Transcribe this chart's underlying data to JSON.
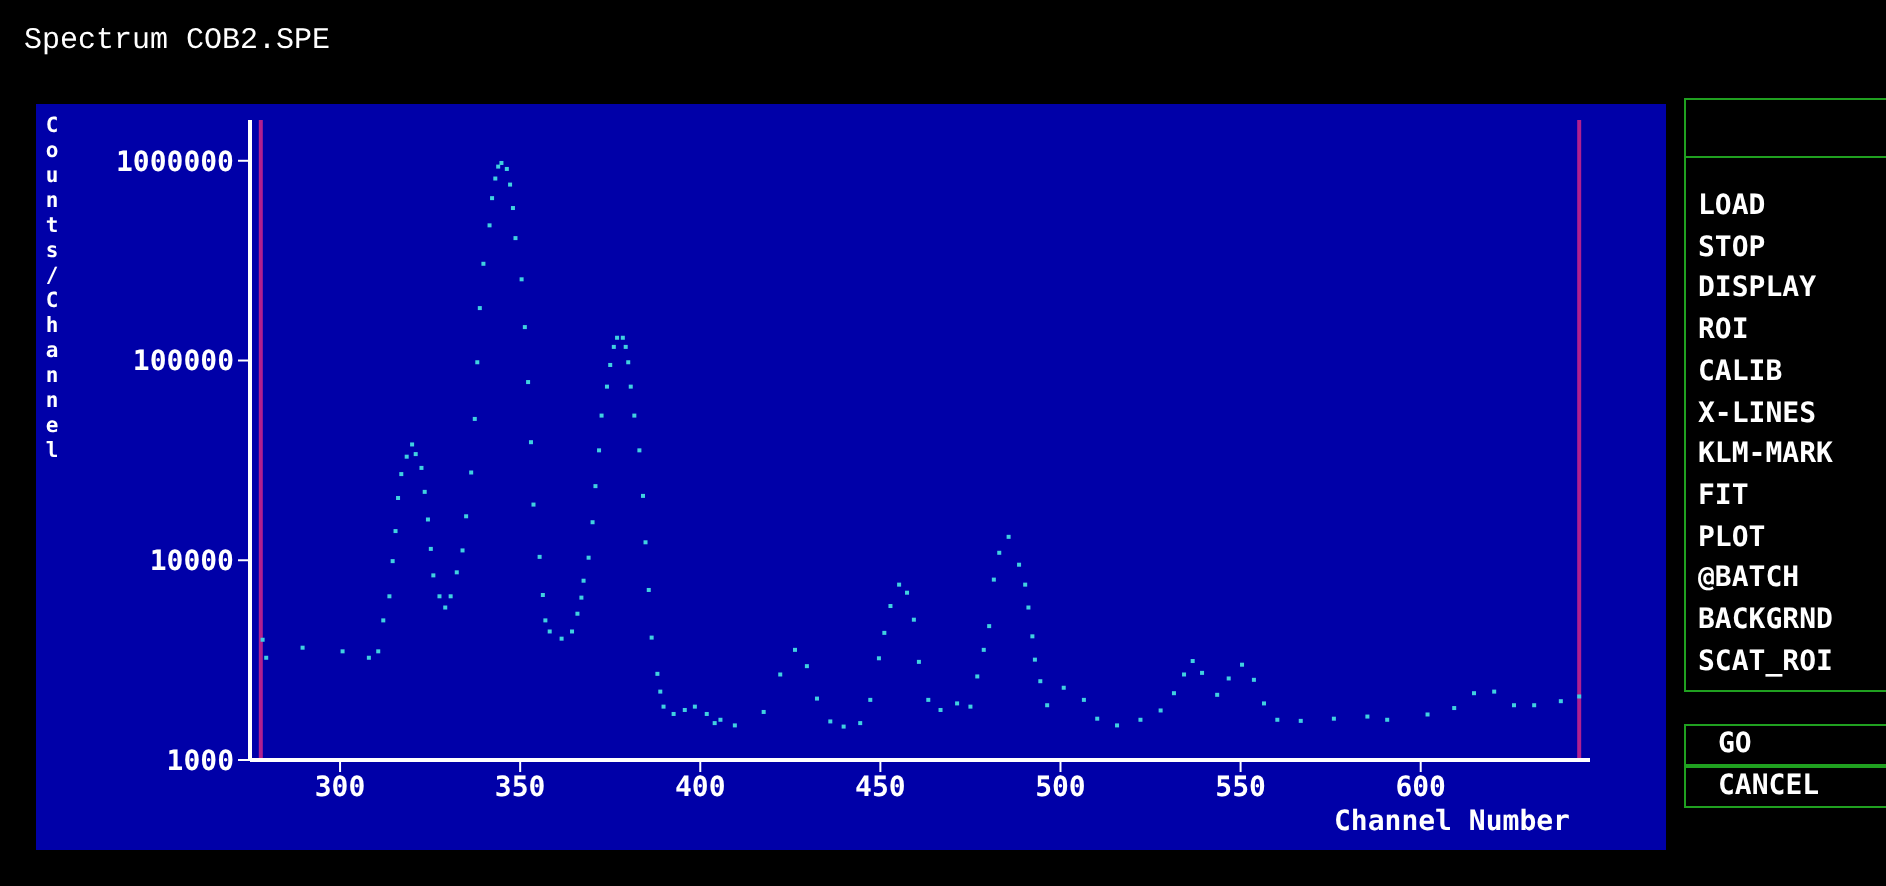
{
  "chart_data": {
    "type": "scatter",
    "title": "Spectrum COB2.SPE",
    "xlabel": "Channel Number",
    "ylabel": "Counts/Channel",
    "log": "y",
    "marker": "square",
    "grid": false,
    "legend": false,
    "xlim": [
      275,
      647
    ],
    "xticks": [
      300,
      350,
      400,
      450,
      500,
      550,
      600
    ],
    "ylim": [
      1000,
      1600000
    ],
    "yticks": [
      1000,
      10000,
      100000,
      1000000
    ],
    "ref_lines": [
      {
        "axis": "x",
        "value": 278,
        "color": "#b0208f"
      },
      {
        "axis": "x",
        "value": 644,
        "color": "#b0208f"
      }
    ],
    "annotations": [
      "LOAD",
      "STOP",
      "DISPLAY",
      "ROI",
      "CALIB",
      "X-LINES",
      "KLM-MARK",
      "FIT",
      "PLOT",
      "@BATCH",
      "BACKGRND",
      "SCAT_ROI",
      "GO",
      "CANCEL"
    ],
    "series": [
      {
        "color": "#40d0e0",
        "x": [
          278.5,
          279.5,
          289.6,
          300.7,
          308,
          310.6,
          312,
          313.7,
          314.6,
          315.4,
          316.1,
          317,
          318.5,
          320,
          321,
          322.6,
          323.5,
          324.4,
          325.2,
          325.9,
          327.6,
          329.2,
          330.7,
          332.4,
          334,
          335,
          336.4,
          337.4,
          338.1,
          338.8,
          339.8,
          341.5,
          342.2,
          343.1,
          343.9,
          344.8,
          346.3,
          347.2,
          348,
          348.7,
          350.4,
          351.3,
          352.2,
          353,
          353.7,
          355.4,
          356.3,
          357,
          358.2,
          361.5,
          364.4,
          365.9,
          367,
          367.6,
          369,
          370.1,
          370.9,
          371.9,
          372.6,
          374.1,
          375,
          376,
          376.9,
          378.5,
          379.3,
          380,
          380.7,
          381.7,
          383.1,
          384.1,
          384.8,
          385.7,
          386.5,
          388.1,
          388.9,
          389.8,
          392.6,
          395.7,
          398.5,
          401.8,
          404,
          405.6,
          409.6,
          417.6,
          422.2,
          426.3,
          429.6,
          432.4,
          436.1,
          439.8,
          444.4,
          447.2,
          449.6,
          451.1,
          452.8,
          455.2,
          457.4,
          459.3,
          460.7,
          463.3,
          466.7,
          471.3,
          475,
          476.9,
          478.7,
          480.2,
          481.5,
          483,
          485.6,
          488.5,
          490.2,
          491.1,
          492.2,
          492.9,
          494.4,
          496.3,
          500.9,
          506.5,
          510.2,
          515.7,
          522.2,
          527.8,
          531.5,
          534.3,
          536.7,
          539.3,
          543.5,
          546.7,
          550.4,
          553.7,
          556.5,
          560.2,
          566.7,
          575.9,
          585.2,
          590.7,
          601.9,
          609.3,
          614.8,
          620.4,
          625.9,
          631.5,
          638.9,
          644
        ],
        "values": [
          4000,
          3250,
          3650,
          3500,
          3250,
          3500,
          5000,
          6600,
          9900,
          14000,
          20500,
          27000,
          33000,
          38000,
          34000,
          29000,
          22000,
          16000,
          11400,
          8400,
          6600,
          5800,
          6600,
          8700,
          11200,
          16600,
          27500,
          51000,
          98000,
          183000,
          305000,
          475000,
          650000,
          815000,
          935000,
          975000,
          910000,
          760000,
          580000,
          410000,
          255000,
          147000,
          78000,
          39000,
          19000,
          10400,
          6700,
          5000,
          4400,
          4050,
          4400,
          5400,
          6500,
          7900,
          10300,
          15500,
          23500,
          35500,
          53000,
          74000,
          95000,
          117000,
          130000,
          130000,
          117000,
          98000,
          74000,
          53000,
          35500,
          21000,
          12300,
          7100,
          4100,
          2700,
          2200,
          1850,
          1700,
          1780,
          1850,
          1700,
          1530,
          1590,
          1490,
          1740,
          2680,
          3560,
          2950,
          2030,
          1560,
          1470,
          1530,
          2000,
          3230,
          4330,
          5900,
          7550,
          6880,
          5040,
          3100,
          2000,
          1780,
          1920,
          1850,
          2620,
          3560,
          4680,
          8000,
          10900,
          13100,
          9500,
          7550,
          5800,
          4160,
          3180,
          2480,
          1880,
          2300,
          2000,
          1610,
          1490,
          1590,
          1770,
          2160,
          2680,
          3130,
          2730,
          2120,
          2560,
          3000,
          2520,
          1920,
          1590,
          1570,
          1610,
          1650,
          1590,
          1690,
          1820,
          2160,
          2200,
          1880,
          1880,
          1970,
          2080
        ]
      }
    ]
  }
}
